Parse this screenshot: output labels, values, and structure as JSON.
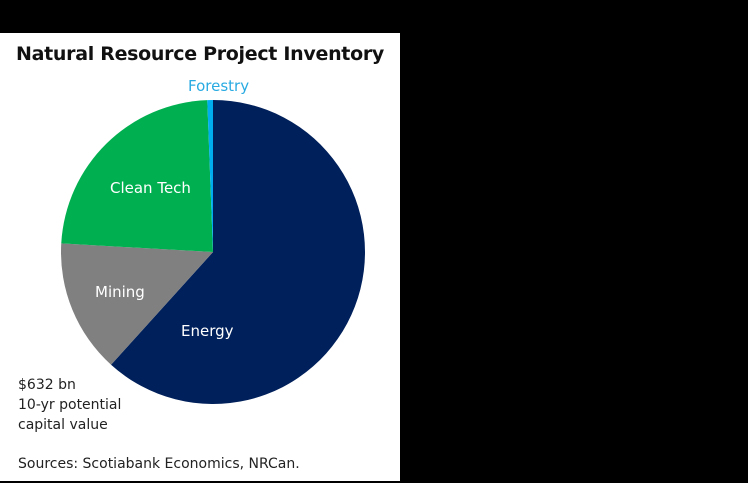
{
  "chart_data": {
    "type": "pie",
    "title": "Natural Resource Project Inventory",
    "slices": [
      {
        "label": "Energy",
        "value": 61.7,
        "color": "#00205b"
      },
      {
        "label": "Mining",
        "value": 14.2,
        "color": "#808080"
      },
      {
        "label": "Clean Tech",
        "value": 23.5,
        "color": "#00b050"
      },
      {
        "label": "Forestry",
        "value": 0.6,
        "color": "#00aeef"
      }
    ],
    "units": "% of total (estimated from slice angles)",
    "annotation": "$632 bn 10-yr potential capital value",
    "source": "Sources: Scotiabank Economics, NRCan."
  },
  "title": "Natural Resource Project Inventory",
  "labels": {
    "energy": "Energy",
    "mining": "Mining",
    "clean_tech": "Clean Tech",
    "forestry": "Forestry"
  },
  "note": {
    "line1": "$632 bn",
    "line2": "10-yr potential",
    "line3": "capital value"
  },
  "source": "Sources: Scotiabank Economics, NRCan."
}
